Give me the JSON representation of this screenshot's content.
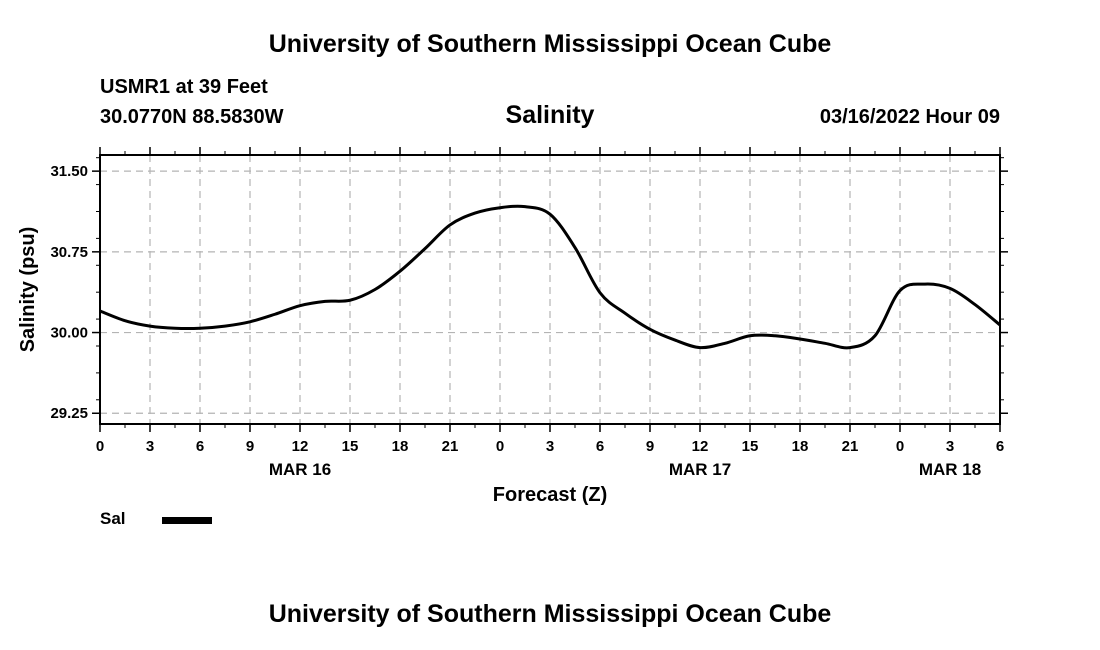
{
  "header": {
    "title": "University of Southern Mississippi Ocean Cube",
    "station": "USMR1 at 39 Feet",
    "coordinates": "30.0770N  88.5830W",
    "chart_title": "Salinity",
    "datetime": "03/16/2022 Hour 09"
  },
  "footer": {
    "title": "University of Southern Mississippi Ocean Cube"
  },
  "legend": {
    "label": "Sal",
    "color": "#000000"
  },
  "chart_data": {
    "type": "line",
    "title": "Salinity",
    "xlabel": "Forecast (Z)",
    "ylabel": "Salinity (psu)",
    "xlim": [
      0,
      54
    ],
    "ylim": [
      29.15,
      31.65
    ],
    "x_ticks": [
      0,
      3,
      6,
      9,
      12,
      15,
      18,
      21,
      24,
      27,
      30,
      33,
      36,
      39,
      42,
      45,
      48,
      51,
      54
    ],
    "x_tick_labels": [
      "0",
      "3",
      "6",
      "9",
      "12",
      "15",
      "18",
      "21",
      "0",
      "3",
      "6",
      "9",
      "12",
      "15",
      "18",
      "21",
      "0",
      "3",
      "6"
    ],
    "date_labels": [
      {
        "x": 12,
        "label": "MAR 16"
      },
      {
        "x": 36,
        "label": "MAR 17"
      },
      {
        "x": 51,
        "label": "MAR 18"
      }
    ],
    "y_ticks": [
      29.25,
      30.0,
      30.75,
      31.5
    ],
    "y_tick_labels": [
      "29.25",
      "30.00",
      "30.75",
      "31.50"
    ],
    "grid": true,
    "legend_position": "bottom-left",
    "series": [
      {
        "name": "Sal",
        "color": "#000000",
        "x": [
          0,
          1.5,
          3,
          4.5,
          6,
          7.5,
          9,
          10.5,
          12,
          13.5,
          15,
          16.5,
          18,
          19.5,
          21,
          22.5,
          24,
          25.5,
          27,
          28.5,
          30,
          31.5,
          33,
          34.5,
          36,
          37.5,
          39,
          40.5,
          42,
          43.5,
          45,
          46.5,
          48,
          49.5,
          51,
          52.5,
          54
        ],
        "values": [
          30.2,
          30.11,
          30.06,
          30.04,
          30.04,
          30.06,
          30.1,
          30.17,
          30.25,
          30.29,
          30.3,
          30.4,
          30.57,
          30.78,
          31.0,
          31.11,
          31.16,
          31.17,
          31.1,
          30.79,
          30.37,
          30.18,
          30.03,
          29.93,
          29.86,
          29.9,
          29.97,
          29.97,
          29.94,
          29.9,
          29.86,
          29.97,
          30.39,
          30.45,
          30.41,
          30.26,
          30.07
        ]
      }
    ]
  }
}
